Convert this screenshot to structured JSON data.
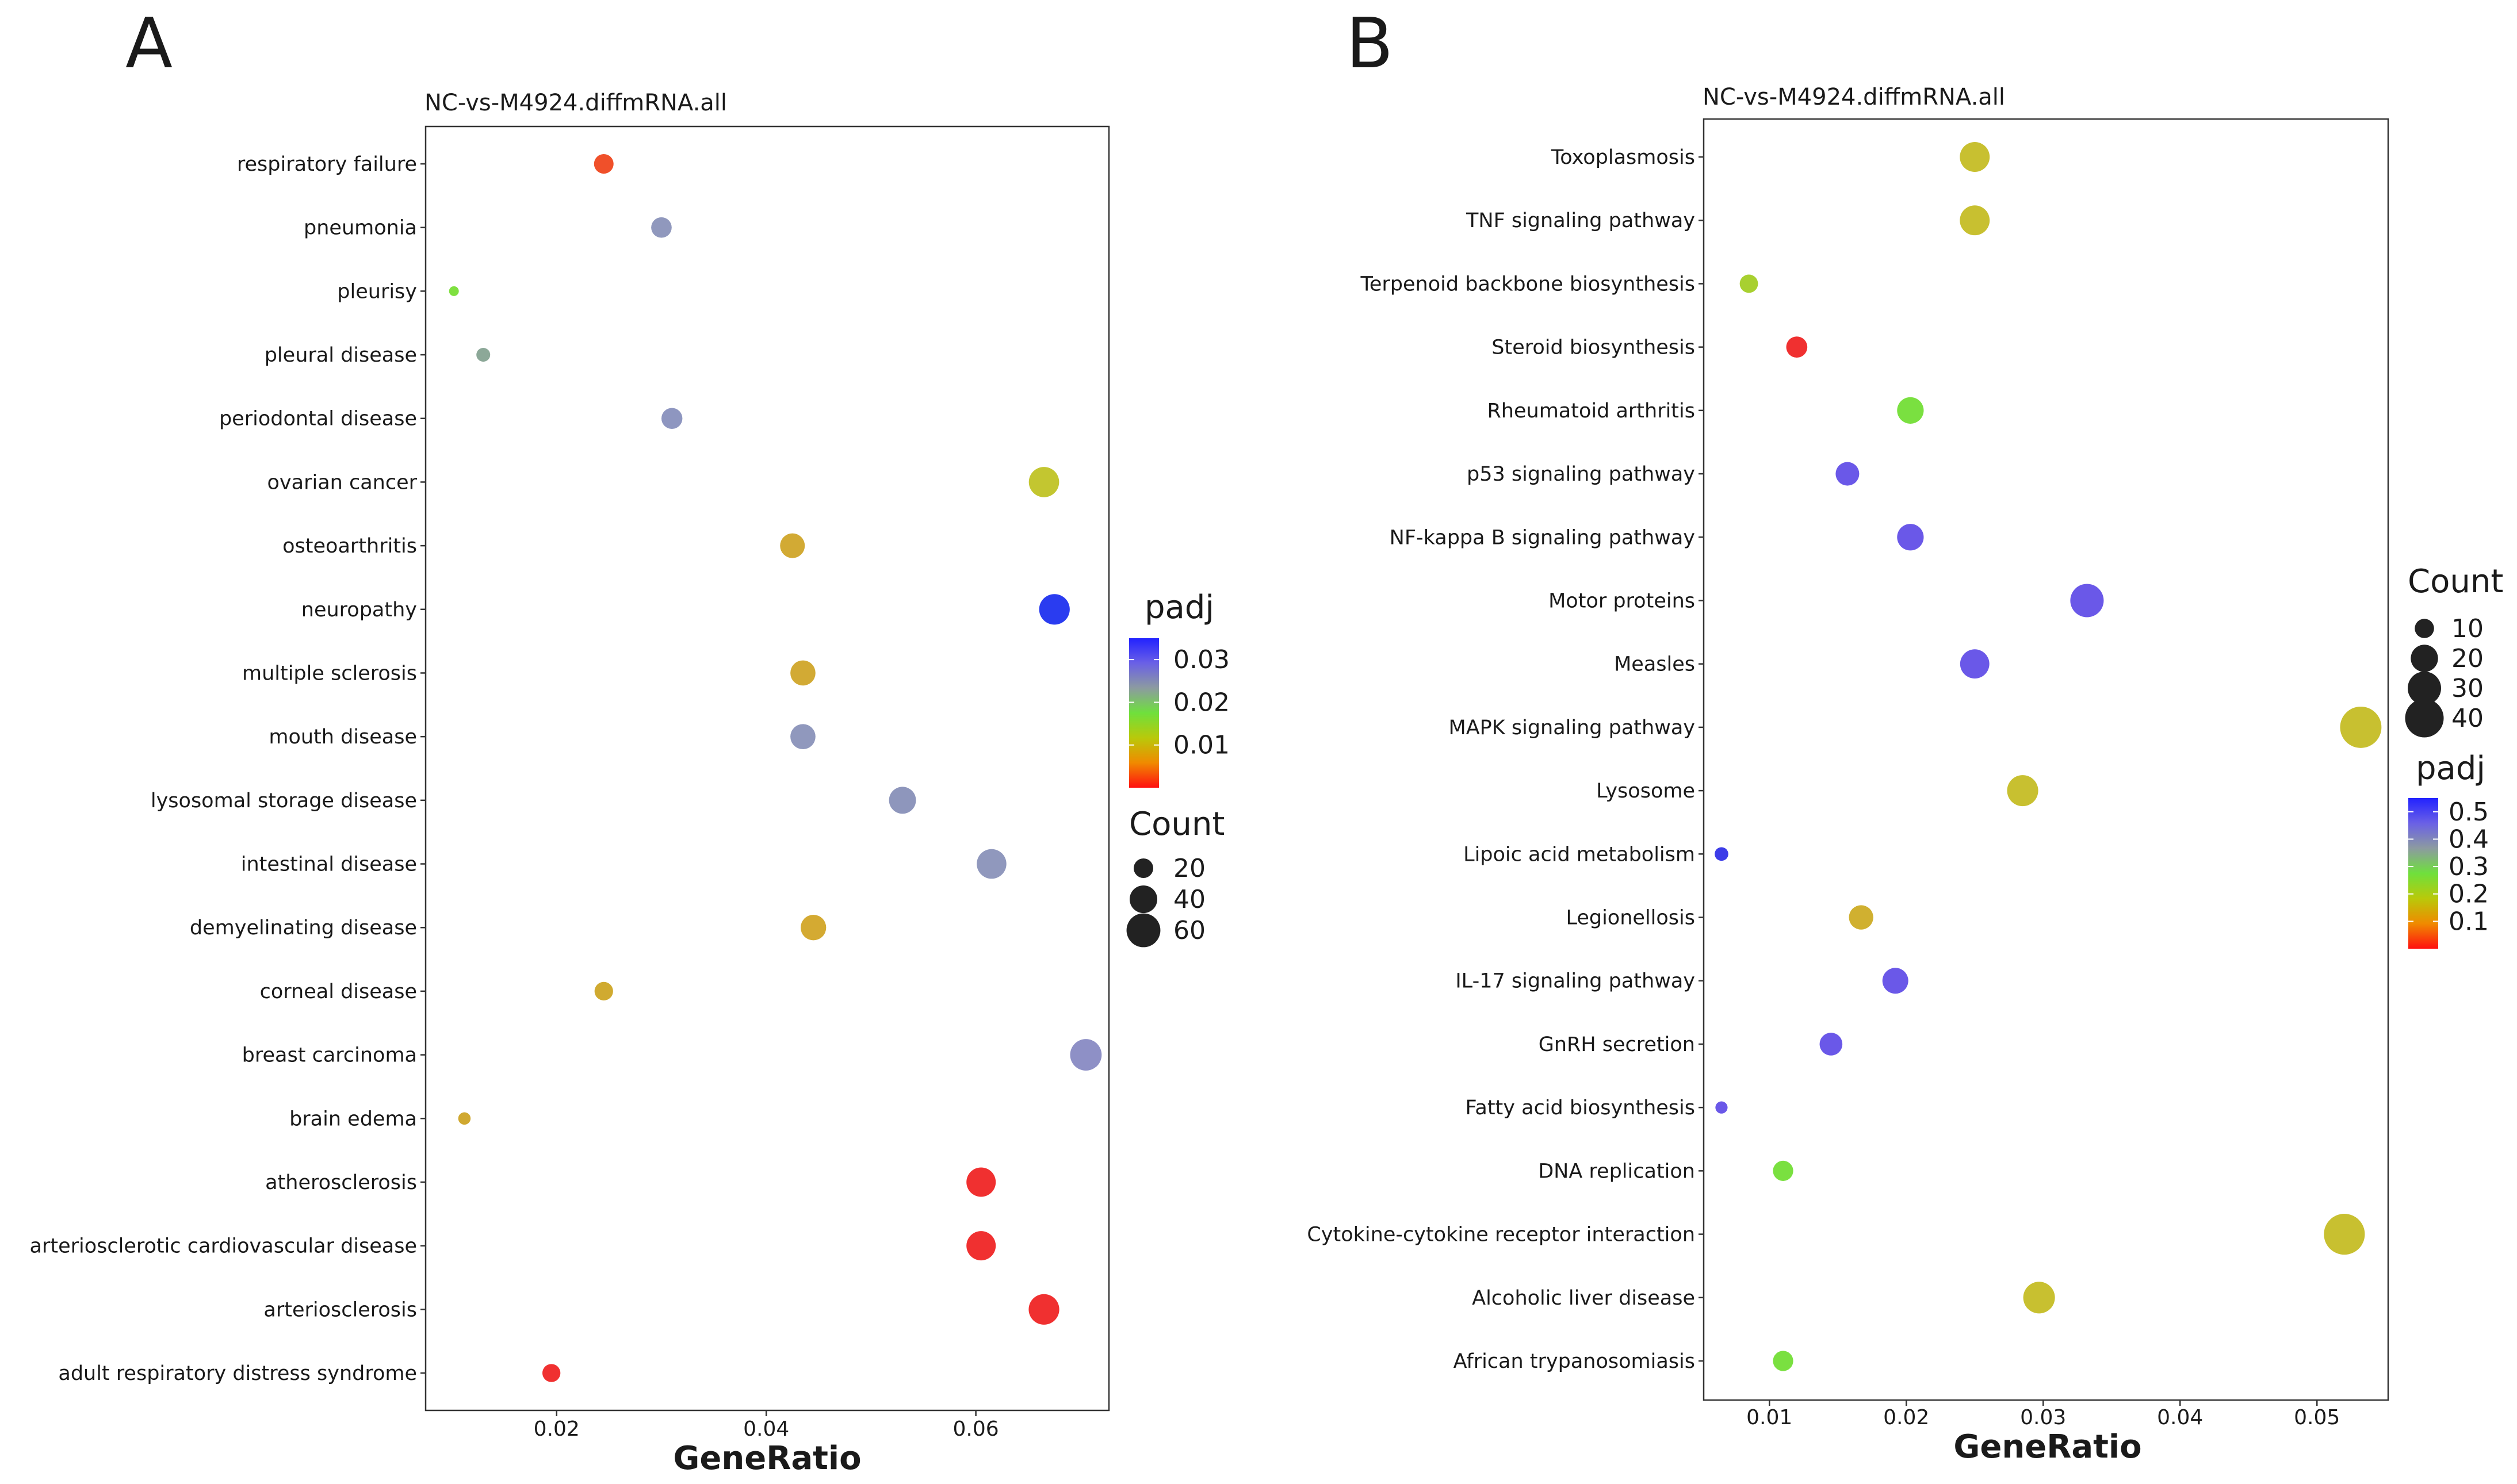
{
  "chart_data": [
    {
      "type": "scatter",
      "panel_label": "A",
      "title": "NC-vs-M4924.diffmRNA.all",
      "xlabel": "GeneRatio",
      "xlim": [
        0.0075,
        0.0727
      ],
      "xticks": [
        0.02,
        0.04,
        0.06
      ],
      "xtick_labels": [
        "0.02",
        "0.04",
        "0.06"
      ],
      "categories": [
        "respiratory failure",
        "pneumonia",
        "pleurisy",
        "pleural disease",
        "periodontal disease",
        "ovarian cancer",
        "osteoarthritis",
        "neuropathy",
        "multiple sclerosis",
        "mouth disease",
        "lysosomal storage disease",
        "intestinal disease",
        "demyelinating disease",
        "corneal disease",
        "breast carcinoma",
        "brain edema",
        "atherosclerosis",
        "arteriosclerotic cardiovascular disease",
        "arteriosclerosis",
        "adult respiratory distress syndrome"
      ],
      "points": [
        {
          "category": "respiratory failure",
          "x": 0.0245,
          "count": 20,
          "padj": 0.005,
          "color": "#f0502a"
        },
        {
          "category": "pneumonia",
          "x": 0.03,
          "count": 22,
          "padj": 0.027,
          "color": "#9098bd"
        },
        {
          "category": "pleurisy",
          "x": 0.0102,
          "count": 5,
          "padj": 0.015,
          "color": "#7fe040"
        },
        {
          "category": "pleural disease",
          "x": 0.013,
          "count": 10,
          "padj": 0.022,
          "color": "#8ca898"
        },
        {
          "category": "periodontal disease",
          "x": 0.031,
          "count": 23,
          "padj": 0.027,
          "color": "#8e96c0"
        },
        {
          "category": "ovarian cancer",
          "x": 0.0665,
          "count": 48,
          "padj": 0.012,
          "color": "#c3c630"
        },
        {
          "category": "osteoarthritis",
          "x": 0.0425,
          "count": 32,
          "padj": 0.009,
          "color": "#d2aa34"
        },
        {
          "category": "neuropathy",
          "x": 0.0675,
          "count": 49,
          "padj": 0.035,
          "color": "#2a3cf0"
        },
        {
          "category": "multiple sclerosis",
          "x": 0.0435,
          "count": 33,
          "padj": 0.009,
          "color": "#d2aa34"
        },
        {
          "category": "mouth disease",
          "x": 0.0435,
          "count": 33,
          "padj": 0.027,
          "color": "#9098bd"
        },
        {
          "category": "lysosomal storage disease",
          "x": 0.053,
          "count": 38,
          "padj": 0.027,
          "color": "#8e96bc"
        },
        {
          "category": "intestinal disease",
          "x": 0.0615,
          "count": 46,
          "padj": 0.027,
          "color": "#9098bd"
        },
        {
          "category": "demyelinating disease",
          "x": 0.0445,
          "count": 34,
          "padj": 0.009,
          "color": "#d4aa32"
        },
        {
          "category": "corneal disease",
          "x": 0.0245,
          "count": 18,
          "padj": 0.009,
          "color": "#d0aa30"
        },
        {
          "category": "breast carcinoma",
          "x": 0.0705,
          "count": 52,
          "padj": 0.028,
          "color": "#8e90c6"
        },
        {
          "category": "brain edema",
          "x": 0.0112,
          "count": 8,
          "padj": 0.009,
          "color": "#d0a830"
        },
        {
          "category": "atherosclerosis",
          "x": 0.0605,
          "count": 45,
          "padj": 0.002,
          "color": "#f03030"
        },
        {
          "category": "arteriosclerotic cardiovascular disease",
          "x": 0.0605,
          "count": 45,
          "padj": 0.002,
          "color": "#f03030"
        },
        {
          "category": "arteriosclerosis",
          "x": 0.0665,
          "count": 49,
          "padj": 0.002,
          "color": "#f03030"
        },
        {
          "category": "adult respiratory distress syndrome",
          "x": 0.0195,
          "count": 17,
          "padj": 0.002,
          "color": "#f03030"
        }
      ],
      "size_legend": {
        "title": "Count",
        "values": [
          20,
          40,
          60
        ],
        "labels": [
          "20",
          "40",
          "60"
        ]
      },
      "color_legend": {
        "title": "padj",
        "min": 0.0,
        "max": 0.035,
        "ticks": [
          0.01,
          0.02,
          0.03
        ],
        "tick_labels": [
          "0.01",
          "0.02",
          "0.03"
        ],
        "gradient": [
          "#ff1010",
          "#f08a00",
          "#b9c90a",
          "#6fe03c",
          "#8c9ba0",
          "#6a60e6",
          "#2222ff"
        ]
      },
      "legend_position": "right",
      "grid": false
    },
    {
      "type": "scatter",
      "panel_label": "B",
      "title": "NC-vs-M4924.diffmRNA.all",
      "xlabel": "GeneRatio",
      "xlim": [
        0.0052,
        0.0552
      ],
      "xticks": [
        0.01,
        0.02,
        0.03,
        0.04,
        0.05
      ],
      "xtick_labels": [
        "0.01",
        "0.02",
        "0.03",
        "0.04",
        "0.05"
      ],
      "categories": [
        "Toxoplasmosis",
        "TNF signaling pathway",
        "Terpenoid backbone biosynthesis",
        "Steroid biosynthesis",
        "Rheumatoid arthritis",
        "p53 signaling pathway",
        "NF-kappa B signaling pathway",
        "Motor proteins",
        "Measles",
        "MAPK signaling pathway",
        "Lysosome",
        "Lipoic acid metabolism",
        "Legionellosis",
        "IL-17 signaling pathway",
        "GnRH secretion",
        "Fatty acid biosynthesis",
        "DNA replication",
        "Cytokine-cytokine receptor interaction",
        "Alcoholic liver disease",
        "African trypanosomiasis"
      ],
      "points": [
        {
          "category": "Toxoplasmosis",
          "x": 0.025,
          "count": 24,
          "padj": 0.12,
          "color": "#c8c030"
        },
        {
          "category": "TNF signaling pathway",
          "x": 0.025,
          "count": 24,
          "padj": 0.12,
          "color": "#c8c030"
        },
        {
          "category": "Terpenoid backbone biosynthesis",
          "x": 0.0085,
          "count": 9,
          "padj": 0.18,
          "color": "#a8d030"
        },
        {
          "category": "Steroid biosynthesis",
          "x": 0.012,
          "count": 12,
          "padj": 0.01,
          "color": "#f03030"
        },
        {
          "category": "Rheumatoid arthritis",
          "x": 0.0203,
          "count": 19,
          "padj": 0.24,
          "color": "#7ae040"
        },
        {
          "category": "p53 signaling pathway",
          "x": 0.0157,
          "count": 15,
          "padj": 0.47,
          "color": "#6a58e8"
        },
        {
          "category": "NF-kappa B signaling pathway",
          "x": 0.0203,
          "count": 19,
          "padj": 0.47,
          "color": "#6a58e8"
        },
        {
          "category": "Motor proteins",
          "x": 0.0332,
          "count": 30,
          "padj": 0.47,
          "color": "#6a58e8"
        },
        {
          "category": "Measles",
          "x": 0.025,
          "count": 23,
          "padj": 0.47,
          "color": "#6a58e8"
        },
        {
          "category": "MAPK signaling pathway",
          "x": 0.0532,
          "count": 46,
          "padj": 0.12,
          "color": "#c8c030"
        },
        {
          "category": "Lysosome",
          "x": 0.0285,
          "count": 26,
          "padj": 0.12,
          "color": "#c8c030"
        },
        {
          "category": "Lipoic acid metabolism",
          "x": 0.0065,
          "count": 5,
          "padj": 0.53,
          "color": "#3c3ce8"
        },
        {
          "category": "Legionellosis",
          "x": 0.0167,
          "count": 16,
          "padj": 0.12,
          "color": "#d0b030"
        },
        {
          "category": "IL-17 signaling pathway",
          "x": 0.0192,
          "count": 18,
          "padj": 0.47,
          "color": "#6a58e8"
        },
        {
          "category": "GnRH secretion",
          "x": 0.0145,
          "count": 14,
          "padj": 0.47,
          "color": "#6a58e8"
        },
        {
          "category": "Fatty acid biosynthesis",
          "x": 0.0065,
          "count": 4,
          "padj": 0.47,
          "color": "#6a58e8"
        },
        {
          "category": "DNA replication",
          "x": 0.011,
          "count": 11,
          "padj": 0.24,
          "color": "#7ae040"
        },
        {
          "category": "Cytokine-cytokine receptor interaction",
          "x": 0.052,
          "count": 45,
          "padj": 0.12,
          "color": "#c8c030"
        },
        {
          "category": "Alcoholic liver disease",
          "x": 0.0297,
          "count": 27,
          "padj": 0.12,
          "color": "#c8c030"
        },
        {
          "category": "African trypanosomiasis",
          "x": 0.011,
          "count": 11,
          "padj": 0.24,
          "color": "#7ae040"
        }
      ],
      "size_legend": {
        "title": "Count",
        "values": [
          10,
          20,
          30,
          40
        ],
        "labels": [
          "10",
          "20",
          "30",
          "40"
        ]
      },
      "color_legend": {
        "title": "padj",
        "min": 0.0,
        "max": 0.55,
        "ticks": [
          0.1,
          0.2,
          0.3,
          0.4,
          0.5
        ],
        "tick_labels": [
          "0.1",
          "0.2",
          "0.3",
          "0.4",
          "0.5"
        ],
        "gradient": [
          "#ff1010",
          "#f08a00",
          "#b9c90a",
          "#6fe03c",
          "#8c9ba0",
          "#6a60e6",
          "#2222ff"
        ]
      },
      "legend_position": "right",
      "grid": false
    }
  ]
}
